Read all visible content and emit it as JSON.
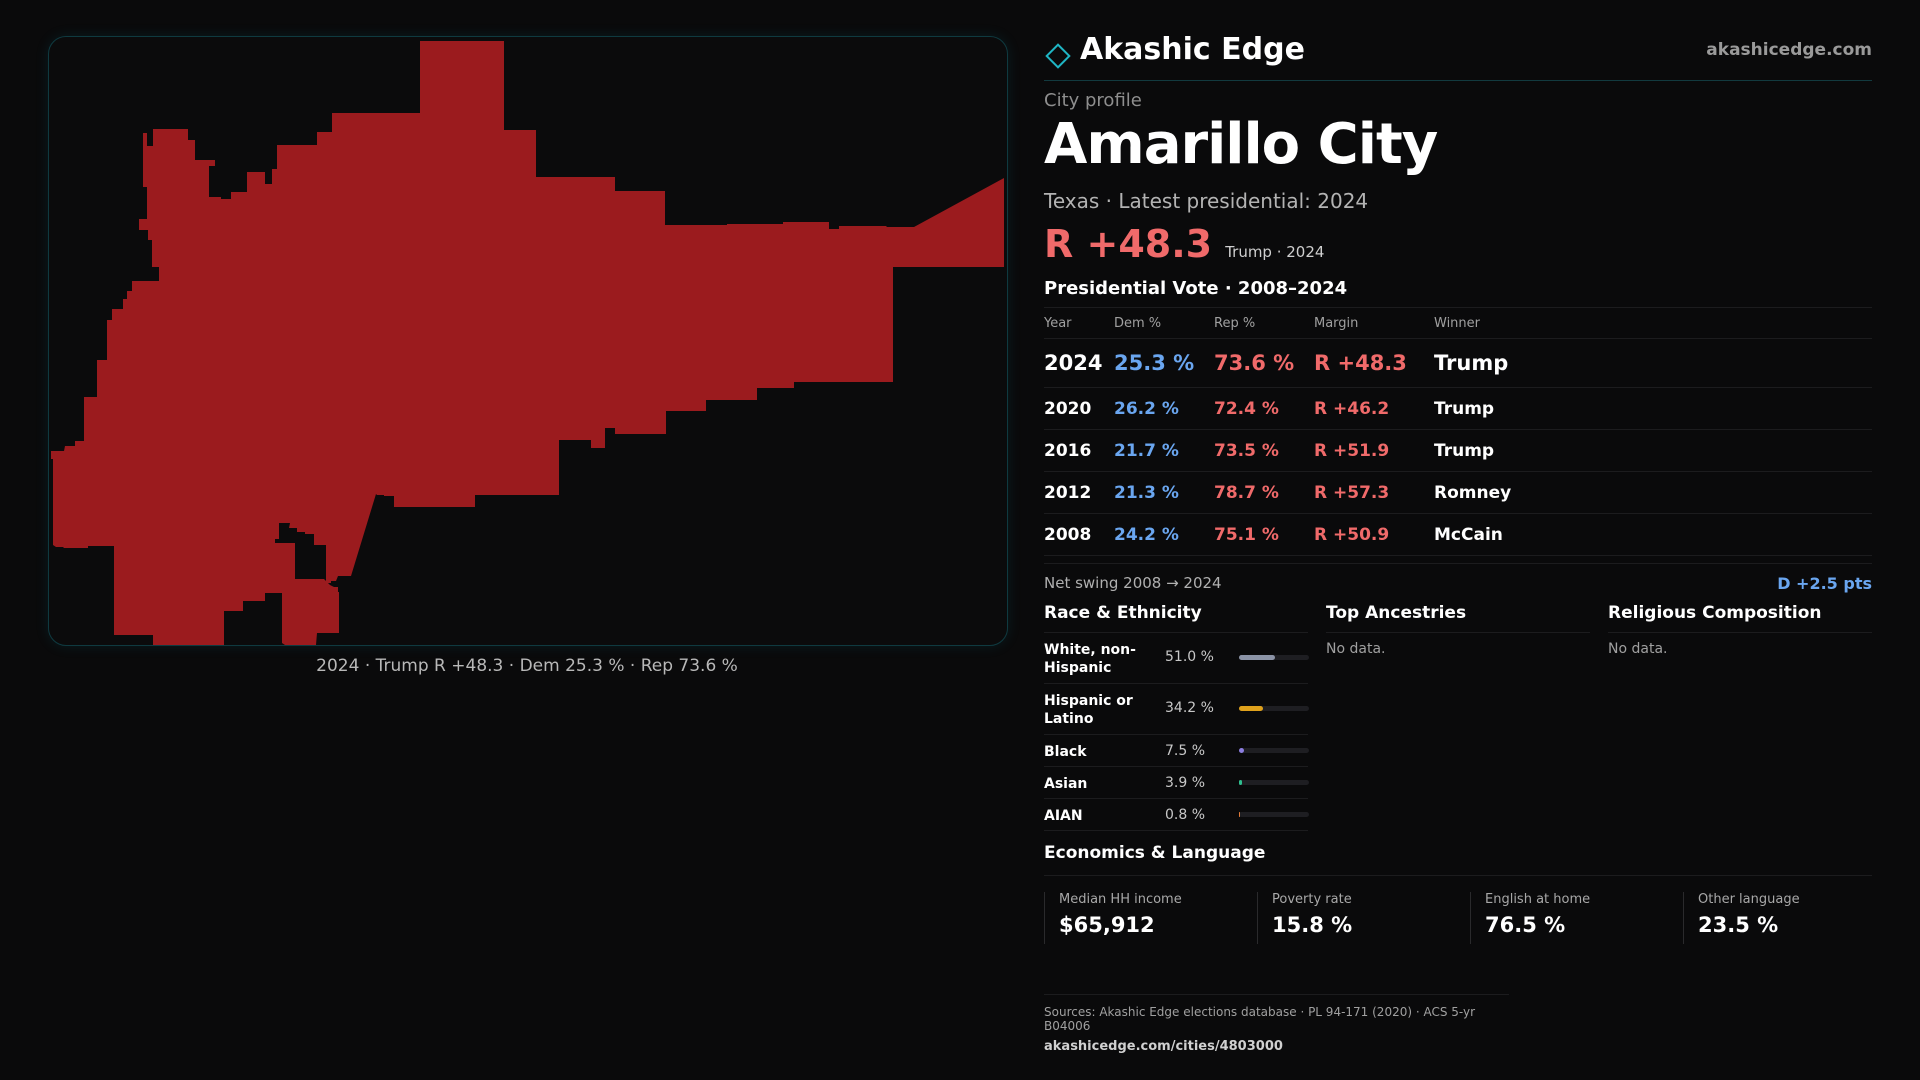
{
  "brand": {
    "name": "Akashic Edge",
    "url": "akashicedge.com",
    "icon": "diamond-logo-icon",
    "accent": "#1fb5c4"
  },
  "profile": {
    "eyebrow": "City profile",
    "title": "Amarillo City",
    "subtitle": "Texas · Latest presidential: 2024",
    "headline_margin": "R +48.3",
    "headline_note": "Trump · 2024"
  },
  "map": {
    "fill_color": "#9b1b1e",
    "caption": "2024 · Trump R +48.3 · Dem 25.3 % · Rep 73.6 %"
  },
  "vote_table": {
    "title": "Presidential Vote · 2008–2024",
    "headers": {
      "year": "Year",
      "dem": "Dem %",
      "rep": "Rep %",
      "margin": "Margin",
      "winner": "Winner"
    },
    "rows": [
      {
        "year": "2024",
        "dem": "25.3 %",
        "rep": "73.6 %",
        "margin": "R +48.3",
        "winner": "Trump"
      },
      {
        "year": "2020",
        "dem": "26.2 %",
        "rep": "72.4 %",
        "margin": "R +46.2",
        "winner": "Trump"
      },
      {
        "year": "2016",
        "dem": "21.7 %",
        "rep": "73.5 %",
        "margin": "R +51.9",
        "winner": "Trump"
      },
      {
        "year": "2012",
        "dem": "21.3 %",
        "rep": "78.7 %",
        "margin": "R +57.3",
        "winner": "Romney"
      },
      {
        "year": "2008",
        "dem": "24.2 %",
        "rep": "75.1 %",
        "margin": "R +50.9",
        "winner": "McCain"
      }
    ],
    "dem_color": "#6aa6f0",
    "rep_color": "#f06a6a"
  },
  "swing": {
    "label": "Net swing 2008 → 2024",
    "value": "D +2.5 pts"
  },
  "race": {
    "title": "Race & Ethnicity",
    "rows": [
      {
        "label": "White, non-Hispanic",
        "pct": "51.0 %",
        "share": 0.51,
        "color": "#8b93a6"
      },
      {
        "label": "Hispanic or Latino",
        "pct": "34.2 %",
        "share": 0.342,
        "color": "#e0a21c"
      },
      {
        "label": "Black",
        "pct": "7.5 %",
        "share": 0.075,
        "color": "#8c7ee0"
      },
      {
        "label": "Asian",
        "pct": "3.9 %",
        "share": 0.039,
        "color": "#2fbf8f"
      },
      {
        "label": "AIAN",
        "pct": "0.8 %",
        "share": 0.008,
        "color": "#e07b3a"
      }
    ]
  },
  "ancestries": {
    "title": "Top Ancestries",
    "empty": "No data."
  },
  "religion": {
    "title": "Religious Composition",
    "empty": "No data."
  },
  "economics": {
    "title": "Economics & Language",
    "items": [
      {
        "label": "Median HH income",
        "value": "$65,912"
      },
      {
        "label": "Poverty rate",
        "value": "15.8 %"
      },
      {
        "label": "English at home",
        "value": "76.5 %"
      },
      {
        "label": "Other language",
        "value": "23.5 %"
      }
    ]
  },
  "footer": {
    "sources": "Sources: Akashic Edge elections database · PL 94-171 (2020) · ACS 5-yr B04006",
    "url": "akashicedge.com/cities/4803000"
  }
}
